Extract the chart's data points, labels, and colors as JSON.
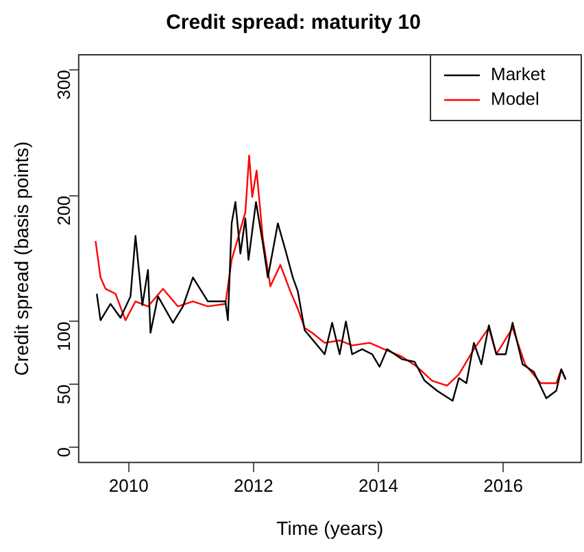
{
  "chart_data": {
    "type": "line",
    "title": "Credit spread: maturity 10",
    "xlabel": "Time (years)",
    "ylabel": "Credit spread (basis points)",
    "xlim": [
      2009.2,
      2017.25
    ],
    "xticks": [
      2010,
      2012,
      2014,
      2016
    ],
    "ylim": [
      -12,
      312
    ],
    "yticks": [
      0,
      50,
      100,
      200,
      300
    ],
    "grid": false,
    "legend": "top right",
    "marker": "none",
    "line_style": "solid",
    "series": [
      {
        "name": "Market",
        "color": "#000000",
        "x": [
          2009.49,
          2009.55,
          2009.71,
          2009.87,
          2010.03,
          2010.11,
          2010.22,
          2010.31,
          2010.35,
          2010.47,
          2010.71,
          2010.87,
          2011.03,
          2011.27,
          2011.55,
          2011.59,
          2011.65,
          2011.71,
          2011.79,
          2011.87,
          2011.92,
          2012.04,
          2012.15,
          2012.23,
          2012.39,
          2012.51,
          2012.63,
          2012.71,
          2012.82,
          2012.94,
          2013.14,
          2013.26,
          2013.38,
          2013.48,
          2013.58,
          2013.74,
          2013.9,
          2014.02,
          2014.14,
          2014.38,
          2014.58,
          2014.74,
          2014.94,
          2015.19,
          2015.29,
          2015.41,
          2015.53,
          2015.65,
          2015.77,
          2015.89,
          2016.04,
          2016.15,
          2016.31,
          2016.49,
          2016.69,
          2016.85,
          2016.93,
          2017.0
        ],
        "values": [
          122,
          101,
          114,
          103,
          120,
          168,
          113,
          141,
          91,
          120,
          99,
          112,
          135,
          116,
          116,
          101,
          178,
          195,
          154,
          182,
          149,
          195,
          162,
          135,
          178,
          157,
          135,
          124,
          93,
          86,
          74,
          99,
          74,
          100,
          74,
          78,
          74,
          64,
          78,
          70,
          68,
          53,
          45,
          37,
          55,
          51,
          83,
          66,
          97,
          74,
          74,
          99,
          66,
          60,
          39,
          45,
          62,
          54
        ]
      },
      {
        "name": "Model",
        "color": "#ff0000",
        "x": [
          2009.47,
          2009.55,
          2009.63,
          2009.79,
          2009.95,
          2010.11,
          2010.31,
          2010.55,
          2010.79,
          2011.03,
          2011.27,
          2011.55,
          2011.65,
          2011.75,
          2011.87,
          2011.93,
          2011.98,
          2012.05,
          2012.15,
          2012.27,
          2012.43,
          2012.59,
          2012.71,
          2012.82,
          2012.94,
          2013.14,
          2013.38,
          2013.58,
          2013.86,
          2014.14,
          2014.38,
          2014.62,
          2014.86,
          2015.1,
          2015.29,
          2015.53,
          2015.77,
          2015.89,
          2016.15,
          2016.35,
          2016.6,
          2016.85,
          2016.93,
          2017.0
        ],
        "values": [
          164,
          135,
          126,
          122,
          101,
          116,
          112,
          126,
          112,
          116,
          112,
          114,
          149,
          166,
          187,
          232,
          199,
          220,
          166,
          128,
          145,
          124,
          110,
          95,
          91,
          83,
          85,
          81,
          83,
          77,
          72,
          64,
          53,
          49,
          58,
          78,
          95,
          74,
          95,
          66,
          51,
          51,
          62,
          54
        ]
      }
    ]
  }
}
